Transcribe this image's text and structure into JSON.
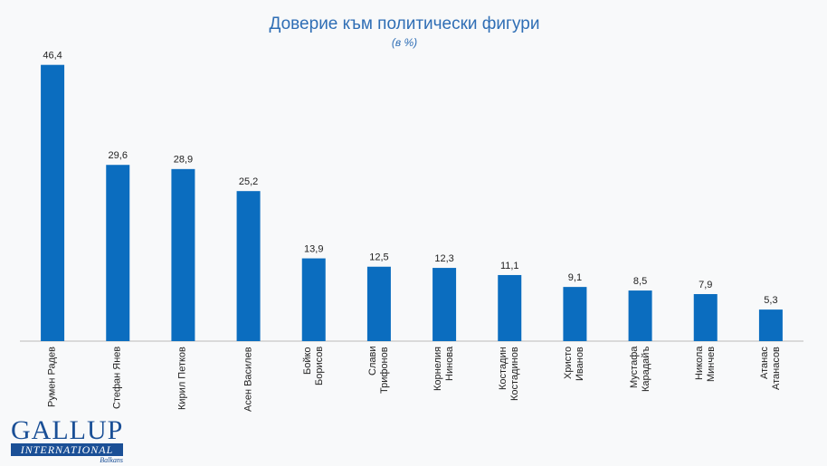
{
  "chart_data": {
    "type": "bar",
    "title": "Доверие към политически фигури",
    "subtitle": "(в %)",
    "categories": [
      "Румен Радев",
      "Стефан Янев",
      "Кирил Петков",
      "Асен Василев",
      "Бойко\nБорисов",
      "Слави\nТрифонов",
      "Корнелия\nНинова",
      "Костадин\nКостадинов",
      "Христо\nИванов",
      "Мустафа\nКарадайъ",
      "Никола\nМинчев",
      "Атанас\nАтанасов"
    ],
    "values": [
      46.4,
      29.6,
      28.9,
      25.2,
      13.9,
      12.5,
      12.3,
      11.1,
      9.1,
      8.5,
      7.9,
      5.3
    ],
    "value_labels": [
      "46,4",
      "29,6",
      "28,9",
      "25,2",
      "13,9",
      "12,5",
      "12,3",
      "11,1",
      "9,1",
      "8,5",
      "7,9",
      "5,3"
    ],
    "color": "#0b6dbf",
    "ylim": [
      0,
      50
    ]
  },
  "logo": {
    "name": "GALLUP",
    "subname": "INTERNATIONAL",
    "region": "Balkans"
  }
}
